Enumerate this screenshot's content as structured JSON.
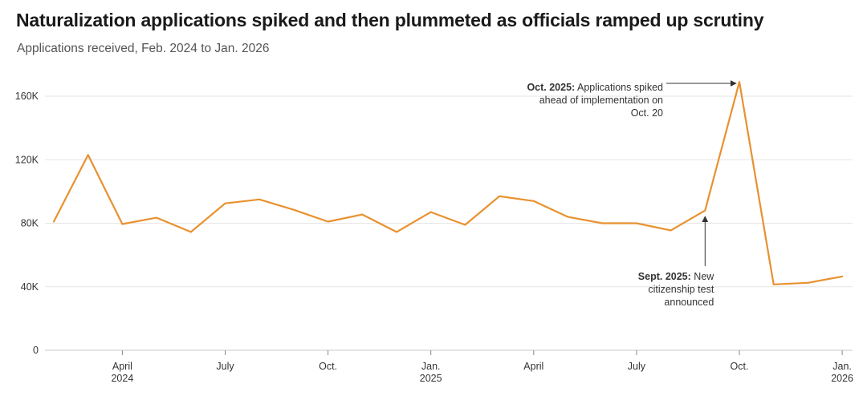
{
  "chart_data": {
    "type": "line",
    "title": "Naturalization applications spiked and then plummeted as officials ramped up scrutiny",
    "subtitle": "Applications received, Feb. 2024 to Jan. 2026",
    "xlabel": "",
    "ylabel": "",
    "ylim": [
      0,
      170000
    ],
    "yticks": [
      {
        "value": 0,
        "label": "0"
      },
      {
        "value": 40000,
        "label": "40K"
      },
      {
        "value": 80000,
        "label": "80K"
      },
      {
        "value": 120000,
        "label": "120K"
      },
      {
        "value": 160000,
        "label": "160K"
      }
    ],
    "xticks": [
      {
        "month": "2024-04",
        "label": "April",
        "sublabel": "2024"
      },
      {
        "month": "2024-07",
        "label": "July",
        "sublabel": ""
      },
      {
        "month": "2024-10",
        "label": "Oct.",
        "sublabel": ""
      },
      {
        "month": "2025-01",
        "label": "Jan.",
        "sublabel": "2025"
      },
      {
        "month": "2025-04",
        "label": "April",
        "sublabel": ""
      },
      {
        "month": "2025-07",
        "label": "July",
        "sublabel": ""
      },
      {
        "month": "2025-10",
        "label": "Oct.",
        "sublabel": ""
      },
      {
        "month": "2026-01",
        "label": "Jan.",
        "sublabel": "2026"
      }
    ],
    "grid": true,
    "color": "#e8912f",
    "series": [
      {
        "name": "Applications received",
        "x": [
          "2024-02",
          "2024-03",
          "2024-04",
          "2024-05",
          "2024-06",
          "2024-07",
          "2024-08",
          "2024-09",
          "2024-10",
          "2024-11",
          "2024-12",
          "2025-01",
          "2025-02",
          "2025-03",
          "2025-04",
          "2025-05",
          "2025-06",
          "2025-07",
          "2025-08",
          "2025-09",
          "2025-10",
          "2025-11",
          "2025-12",
          "2026-01"
        ],
        "values": [
          81000,
          123000,
          79500,
          83500,
          74500,
          92500,
          95000,
          88500,
          81000,
          85500,
          74500,
          87000,
          79000,
          97000,
          94000,
          84000,
          80000,
          80000,
          75500,
          88000,
          169000,
          41500,
          42500,
          46500
        ]
      }
    ],
    "annotations": [
      {
        "month": "2025-10",
        "bold": "Oct. 2025:",
        "lines": [
          " Applications spiked",
          "ahead of implementation on",
          "Oct. 20"
        ]
      },
      {
        "month": "2025-09",
        "bold": "Sept. 2025:",
        "lines": [
          " New",
          "citizenship test",
          "announced"
        ]
      }
    ]
  }
}
